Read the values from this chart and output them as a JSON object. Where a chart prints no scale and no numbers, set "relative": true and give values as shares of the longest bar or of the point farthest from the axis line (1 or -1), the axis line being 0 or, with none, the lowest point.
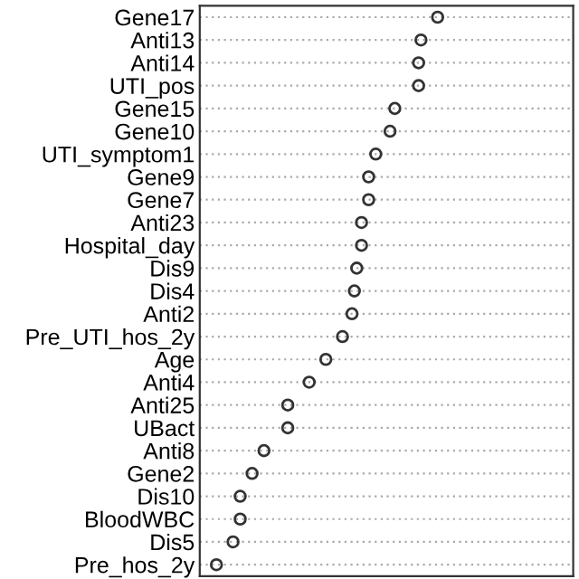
{
  "chart_data": {
    "type": "scatter",
    "orientation": "horizontal",
    "relative": true,
    "grid": "y",
    "marker": "circle",
    "color": "#333333",
    "categories": [
      "Gene17",
      "Anti13",
      "Anti14",
      "UTI_pos",
      "Gene15",
      "Gene10",
      "UTI_symptom1",
      "Gene9",
      "Gene7",
      "Anti23",
      "Hospital_day",
      "Dis9",
      "Dis4",
      "Anti2",
      "Pre_UTI_hos_2y",
      "Age",
      "Anti4",
      "Anti25",
      "UBact",
      "Anti8",
      "Gene2",
      "Dis10",
      "BloodWBC",
      "Dis5",
      "Pre_hos_2y"
    ],
    "values": [
      1.0,
      0.93,
      0.92,
      0.92,
      0.82,
      0.8,
      0.74,
      0.71,
      0.71,
      0.68,
      0.68,
      0.66,
      0.65,
      0.64,
      0.6,
      0.53,
      0.46,
      0.37,
      0.37,
      0.27,
      0.22,
      0.17,
      0.17,
      0.14,
      0.07
    ]
  }
}
